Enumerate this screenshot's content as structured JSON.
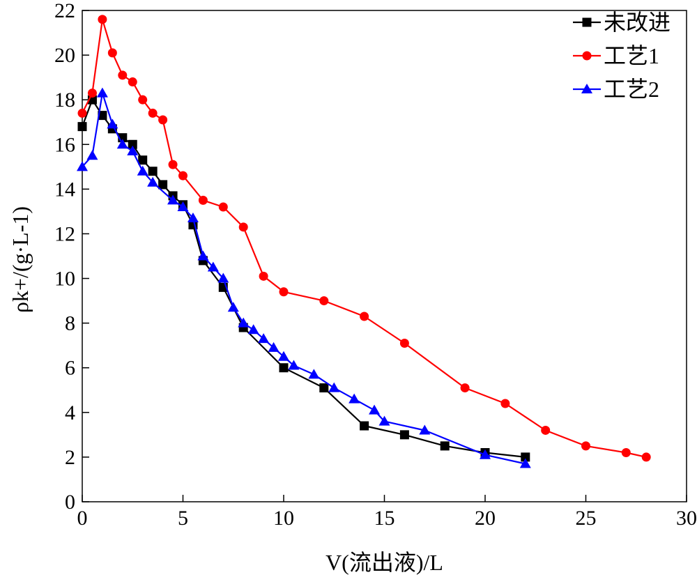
{
  "chart_data": {
    "type": "line",
    "xlabel": "V(流出液)/L",
    "ylabel": "ρk+/(g·L-1)",
    "xlim": [
      0,
      30
    ],
    "ylim": [
      0,
      22
    ],
    "xticks": [
      0,
      5,
      10,
      15,
      20,
      25,
      30
    ],
    "yticks": [
      0,
      2,
      4,
      6,
      8,
      10,
      12,
      14,
      16,
      18,
      20,
      22
    ],
    "grid": false,
    "legend_position": "top-right",
    "series": [
      {
        "name": "未改进",
        "color": "#000000",
        "marker": "square",
        "x": [
          0,
          0.5,
          1,
          1.5,
          2,
          2.5,
          3,
          3.5,
          4,
          4.5,
          5,
          5.5,
          6,
          7,
          8,
          10,
          12,
          14,
          16,
          18,
          20,
          22
        ],
        "y": [
          16.8,
          18.0,
          17.3,
          16.7,
          16.3,
          16.0,
          15.3,
          14.8,
          14.2,
          13.7,
          13.3,
          12.4,
          10.8,
          9.6,
          7.8,
          6.0,
          5.1,
          3.4,
          3.0,
          2.5,
          2.2,
          2.0
        ]
      },
      {
        "name": "工艺1",
        "color": "#ff0000",
        "marker": "circle",
        "x": [
          0,
          0.5,
          1,
          1.5,
          2,
          2.5,
          3,
          3.5,
          4,
          4.5,
          5,
          6,
          7,
          8,
          9,
          10,
          12,
          14,
          16,
          19,
          21,
          23,
          25,
          27,
          28
        ],
        "y": [
          17.4,
          18.3,
          21.6,
          20.1,
          19.1,
          18.8,
          18.0,
          17.4,
          17.1,
          15.1,
          14.6,
          13.5,
          13.2,
          12.3,
          10.1,
          9.4,
          9.0,
          8.3,
          7.1,
          5.1,
          4.4,
          3.2,
          2.5,
          2.2,
          2.0
        ]
      },
      {
        "name": "工艺2",
        "color": "#0000ff",
        "marker": "triangle",
        "x": [
          0,
          0.5,
          1,
          1.5,
          2,
          2.5,
          3,
          3.5,
          4.5,
          5,
          5.5,
          6,
          6.5,
          7,
          7.5,
          8,
          8.5,
          9,
          9.5,
          10,
          10.5,
          11.5,
          12.5,
          13.5,
          14.5,
          15,
          17,
          20,
          22
        ],
        "y": [
          15.0,
          15.5,
          18.3,
          16.9,
          16.0,
          15.7,
          14.8,
          14.3,
          13.5,
          13.2,
          12.7,
          11.0,
          10.5,
          10.0,
          8.7,
          8.0,
          7.7,
          7.3,
          6.9,
          6.5,
          6.1,
          5.7,
          5.1,
          4.6,
          4.1,
          3.6,
          3.2,
          2.1,
          1.7
        ]
      }
    ]
  }
}
